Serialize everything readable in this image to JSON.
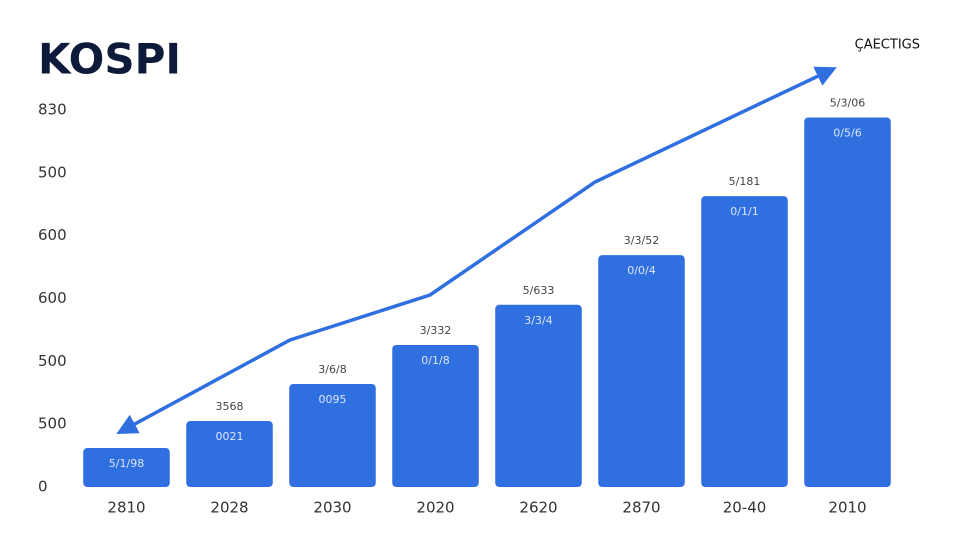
{
  "chart_data": {
    "type": "bar",
    "title": "KOSPI",
    "legend_label": "ÇAECTIGS",
    "categories": [
      "2810",
      "2028",
      "2030",
      "2020",
      "2620",
      "2870",
      "20-40",
      "2010"
    ],
    "values": [
      62,
      105,
      164,
      226,
      290,
      369,
      463,
      588
    ],
    "value_labels": [
      null,
      "3568",
      "3/6/8",
      "3/332",
      "5/633",
      "3/3/52",
      "5/181",
      "5/3/06"
    ],
    "bar_labels": [
      "5/1/98",
      "0021",
      "0095",
      "0/1/8",
      "3/3/4",
      "0/0/4",
      "0/1/1",
      "0/5/6"
    ],
    "color": "#2f6fe0",
    "ylim": [
      0,
      600
    ],
    "yticks": [
      0,
      {
        "value": 100,
        "label": "500"
      },
      {
        "value": 200,
        "label": "500"
      },
      {
        "value": 300,
        "label": "600"
      },
      {
        "value": 400,
        "label": "600"
      },
      {
        "value": 500,
        "label": "500"
      },
      {
        "value": 600,
        "label": "830"
      }
    ],
    "grid": false
  }
}
